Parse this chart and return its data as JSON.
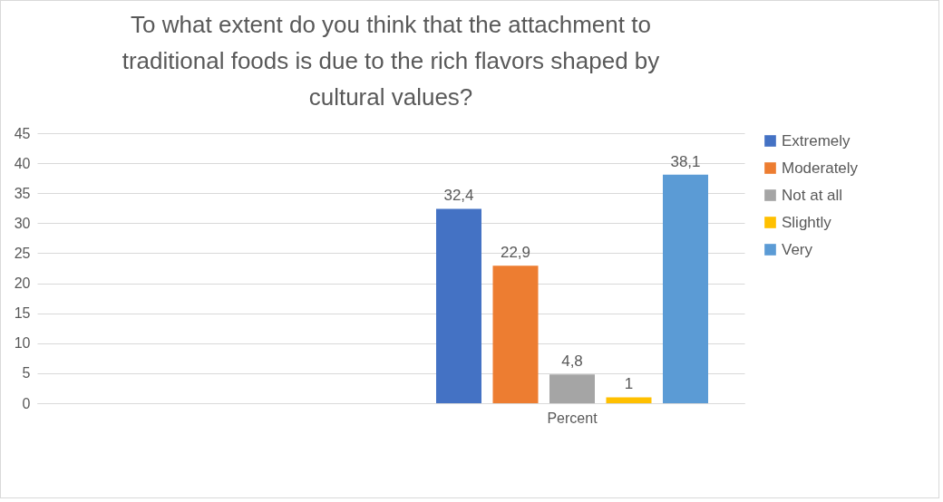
{
  "chart_data": {
    "type": "bar",
    "title": "To what extent do you think that the attachment to traditional foods is due to the rich flavors shaped by cultural values?",
    "categories": [
      null,
      "Percent"
    ],
    "series": [
      {
        "name": "Extremely",
        "color": "#4472c4",
        "values": [
          null,
          32.4
        ],
        "value_labels": [
          null,
          "32,4"
        ]
      },
      {
        "name": "Moderately",
        "color": "#ed7d31",
        "values": [
          null,
          22.9
        ],
        "value_labels": [
          null,
          "22,9"
        ]
      },
      {
        "name": "Not at all",
        "color": "#a5a5a5",
        "values": [
          null,
          4.8
        ],
        "value_labels": [
          null,
          "4,8"
        ]
      },
      {
        "name": "Slightly",
        "color": "#ffc000",
        "values": [
          null,
          1
        ],
        "value_labels": [
          null,
          "1"
        ]
      },
      {
        "name": "Very",
        "color": "#5b9bd5",
        "values": [
          null,
          38.1
        ],
        "value_labels": [
          null,
          "38,1"
        ]
      }
    ],
    "ylim": [
      0,
      45
    ],
    "yticks": [
      0,
      5,
      10,
      15,
      20,
      25,
      30,
      35,
      40,
      45
    ],
    "grid": "y",
    "legend": "right"
  }
}
